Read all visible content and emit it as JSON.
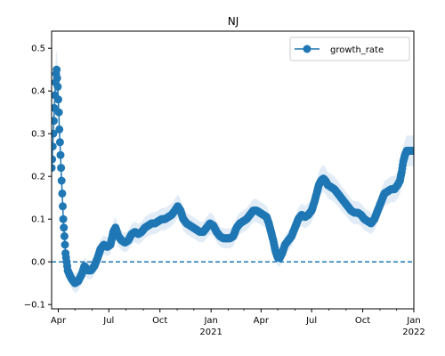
{
  "chart_data": {
    "type": "line",
    "title": "NJ",
    "xlabel": "",
    "ylabel": "",
    "x_range": [
      "2020-03-20",
      "2022-01-01"
    ],
    "ylim": [
      -0.11,
      0.54
    ],
    "x_ticks": [
      {
        "date": "2020-04-01",
        "label": "Apr",
        "year_label": ""
      },
      {
        "date": "2020-07-01",
        "label": "Jul",
        "year_label": ""
      },
      {
        "date": "2020-10-01",
        "label": "Oct",
        "year_label": ""
      },
      {
        "date": "2021-01-01",
        "label": "Jan",
        "year_label": "2021"
      },
      {
        "date": "2021-04-01",
        "label": "Apr",
        "year_label": ""
      },
      {
        "date": "2021-07-01",
        "label": "Jul",
        "year_label": ""
      },
      {
        "date": "2021-10-01",
        "label": "Oct",
        "year_label": ""
      },
      {
        "date": "2022-01-01",
        "label": "Jan",
        "year_label": "2022"
      }
    ],
    "y_ticks": [
      {
        "value": -0.1,
        "label": "−0.1"
      },
      {
        "value": 0.0,
        "label": "0.0"
      },
      {
        "value": 0.1,
        "label": "0.1"
      },
      {
        "value": 0.2,
        "label": "0.2"
      },
      {
        "value": 0.3,
        "label": "0.3"
      },
      {
        "value": 0.4,
        "label": "0.4"
      },
      {
        "value": 0.5,
        "label": "0.5"
      }
    ],
    "reference_line": {
      "y": 0.0,
      "style": "dashed"
    },
    "legend": {
      "position": "top-right",
      "entries": [
        "growth_rate"
      ]
    },
    "series": [
      {
        "name": "growth_rate",
        "color": "#1f77b4",
        "band_color": "#c9dcef",
        "points": [
          [
            "2020-03-20",
            0.22
          ],
          [
            "2020-03-21",
            0.24
          ],
          [
            "2020-03-22",
            0.27
          ],
          [
            "2020-03-23",
            0.3
          ],
          [
            "2020-03-24",
            0.33
          ],
          [
            "2020-03-25",
            0.36
          ],
          [
            "2020-03-26",
            0.39
          ],
          [
            "2020-03-27",
            0.42
          ],
          [
            "2020-03-28",
            0.44
          ],
          [
            "2020-03-29",
            0.45
          ],
          [
            "2020-03-30",
            0.43
          ],
          [
            "2020-03-31",
            0.41
          ],
          [
            "2020-04-01",
            0.38
          ],
          [
            "2020-04-02",
            0.35
          ],
          [
            "2020-04-03",
            0.31
          ],
          [
            "2020-04-04",
            0.28
          ],
          [
            "2020-04-05",
            0.25
          ],
          [
            "2020-04-06",
            0.22
          ],
          [
            "2020-04-07",
            0.19
          ],
          [
            "2020-04-08",
            0.16
          ],
          [
            "2020-04-09",
            0.13
          ],
          [
            "2020-04-10",
            0.1
          ],
          [
            "2020-04-11",
            0.08
          ],
          [
            "2020-04-12",
            0.06
          ],
          [
            "2020-04-13",
            0.04
          ],
          [
            "2020-04-14",
            0.02
          ],
          [
            "2020-04-15",
            0.01
          ],
          [
            "2020-04-16",
            0.0
          ],
          [
            "2020-04-18",
            -0.02
          ],
          [
            "2020-04-21",
            -0.03
          ],
          [
            "2020-04-25",
            -0.04
          ],
          [
            "2020-05-01",
            -0.05
          ],
          [
            "2020-05-07",
            -0.045
          ],
          [
            "2020-05-13",
            -0.03
          ],
          [
            "2020-05-18",
            -0.01
          ],
          [
            "2020-05-24",
            -0.02
          ],
          [
            "2020-05-30",
            -0.02
          ],
          [
            "2020-06-05",
            -0.01
          ],
          [
            "2020-06-11",
            0.01
          ],
          [
            "2020-06-16",
            0.03
          ],
          [
            "2020-06-22",
            0.04
          ],
          [
            "2020-06-28",
            0.035
          ],
          [
            "2020-07-04",
            0.04
          ],
          [
            "2020-07-09",
            0.07
          ],
          [
            "2020-07-13",
            0.08
          ],
          [
            "2020-07-18",
            0.06
          ],
          [
            "2020-07-24",
            0.05
          ],
          [
            "2020-07-30",
            0.045
          ],
          [
            "2020-08-05",
            0.05
          ],
          [
            "2020-08-11",
            0.065
          ],
          [
            "2020-08-17",
            0.07
          ],
          [
            "2020-08-23",
            0.065
          ],
          [
            "2020-08-29",
            0.07
          ],
          [
            "2020-09-04",
            0.08
          ],
          [
            "2020-09-10",
            0.085
          ],
          [
            "2020-09-16",
            0.09
          ],
          [
            "2020-09-22",
            0.09
          ],
          [
            "2020-09-28",
            0.095
          ],
          [
            "2020-10-04",
            0.1
          ],
          [
            "2020-10-10",
            0.1
          ],
          [
            "2020-10-16",
            0.105
          ],
          [
            "2020-10-22",
            0.11
          ],
          [
            "2020-10-28",
            0.12
          ],
          [
            "2020-11-02",
            0.13
          ],
          [
            "2020-11-07",
            0.12
          ],
          [
            "2020-11-12",
            0.1
          ],
          [
            "2020-11-18",
            0.09
          ],
          [
            "2020-11-24",
            0.085
          ],
          [
            "2020-11-30",
            0.08
          ],
          [
            "2020-12-06",
            0.075
          ],
          [
            "2020-12-12",
            0.07
          ],
          [
            "2020-12-18",
            0.07
          ],
          [
            "2020-12-24",
            0.08
          ],
          [
            "2020-12-30",
            0.09
          ],
          [
            "2021-01-05",
            0.085
          ],
          [
            "2021-01-11",
            0.07
          ],
          [
            "2021-01-17",
            0.06
          ],
          [
            "2021-01-23",
            0.055
          ],
          [
            "2021-01-29",
            0.055
          ],
          [
            "2021-02-04",
            0.055
          ],
          [
            "2021-02-10",
            0.06
          ],
          [
            "2021-02-16",
            0.08
          ],
          [
            "2021-02-22",
            0.09
          ],
          [
            "2021-02-28",
            0.095
          ],
          [
            "2021-03-06",
            0.1
          ],
          [
            "2021-03-12",
            0.11
          ],
          [
            "2021-03-18",
            0.12
          ],
          [
            "2021-03-24",
            0.12
          ],
          [
            "2021-03-30",
            0.115
          ],
          [
            "2021-04-05",
            0.11
          ],
          [
            "2021-04-11",
            0.105
          ],
          [
            "2021-04-15",
            0.09
          ],
          [
            "2021-04-19",
            0.07
          ],
          [
            "2021-04-23",
            0.05
          ],
          [
            "2021-04-27",
            0.025
          ],
          [
            "2021-05-01",
            0.01
          ],
          [
            "2021-05-05",
            0.01
          ],
          [
            "2021-05-09",
            0.02
          ],
          [
            "2021-05-14",
            0.04
          ],
          [
            "2021-05-20",
            0.05
          ],
          [
            "2021-05-26",
            0.06
          ],
          [
            "2021-06-01",
            0.08
          ],
          [
            "2021-06-07",
            0.1
          ],
          [
            "2021-06-13",
            0.11
          ],
          [
            "2021-06-19",
            0.105
          ],
          [
            "2021-06-25",
            0.11
          ],
          [
            "2021-07-01",
            0.12
          ],
          [
            "2021-07-06",
            0.14
          ],
          [
            "2021-07-10",
            0.16
          ],
          [
            "2021-07-14",
            0.18
          ],
          [
            "2021-07-18",
            0.19
          ],
          [
            "2021-07-22",
            0.195
          ],
          [
            "2021-07-26",
            0.19
          ],
          [
            "2021-07-30",
            0.18
          ],
          [
            "2021-08-05",
            0.175
          ],
          [
            "2021-08-11",
            0.17
          ],
          [
            "2021-08-17",
            0.16
          ],
          [
            "2021-08-23",
            0.15
          ],
          [
            "2021-08-29",
            0.14
          ],
          [
            "2021-09-04",
            0.13
          ],
          [
            "2021-09-10",
            0.12
          ],
          [
            "2021-09-16",
            0.115
          ],
          [
            "2021-09-22",
            0.115
          ],
          [
            "2021-09-28",
            0.11
          ],
          [
            "2021-10-04",
            0.1
          ],
          [
            "2021-10-10",
            0.095
          ],
          [
            "2021-10-16",
            0.09
          ],
          [
            "2021-10-22",
            0.1
          ],
          [
            "2021-10-28",
            0.12
          ],
          [
            "2021-11-03",
            0.14
          ],
          [
            "2021-11-09",
            0.16
          ],
          [
            "2021-11-15",
            0.165
          ],
          [
            "2021-11-21",
            0.17
          ],
          [
            "2021-11-27",
            0.17
          ],
          [
            "2021-12-03",
            0.18
          ],
          [
            "2021-12-07",
            0.19
          ],
          [
            "2021-12-10",
            0.21
          ],
          [
            "2021-12-13",
            0.235
          ],
          [
            "2021-12-16",
            0.25
          ],
          [
            "2021-12-19",
            0.26
          ],
          [
            "2021-12-23",
            0.26
          ],
          [
            "2021-12-27",
            0.26
          ],
          [
            "2022-01-01",
            0.26
          ]
        ]
      }
    ]
  }
}
